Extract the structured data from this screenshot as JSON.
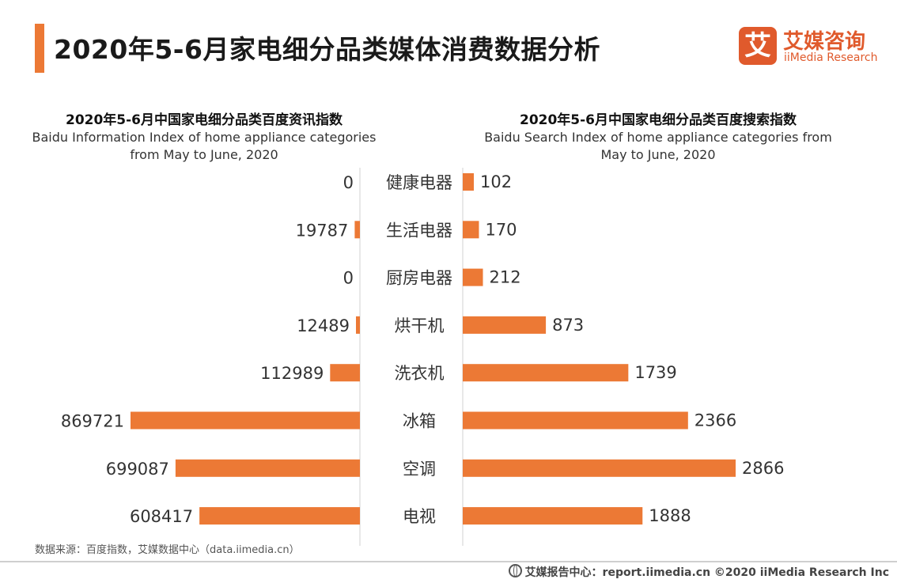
{
  "header": {
    "title": "2020年5-6月家电细分品类媒体消费数据分析",
    "logo_mark": "艾",
    "logo_cn": "艾媒咨询",
    "logo_en": "iiMedia Research"
  },
  "chart_data": [
    {
      "type": "bar",
      "orientation": "horizontal",
      "direction": "right-to-left",
      "title": "2020年5-6月中国家电细分品类百度资讯指数",
      "subtitle": "Baidu Information Index of home appliance categories from May to June, 2020",
      "categories": [
        "健康电器",
        "生活电器",
        "厨房电器",
        "烘干机",
        "洗衣机",
        "冰箱",
        "空调",
        "电视"
      ],
      "values": [
        0,
        19787,
        0,
        12489,
        112989,
        869721,
        699087,
        608417
      ],
      "data_labels": [
        "0",
        "19787",
        "0",
        "12489",
        "112989",
        "869721",
        "699087",
        "608417"
      ],
      "color": "#ec7935"
    },
    {
      "type": "bar",
      "orientation": "horizontal",
      "direction": "left-to-right",
      "title": "2020年5-6月中国家电细分品类百度搜索指数",
      "subtitle": "Baidu Search Index of home appliance categories from May to June, 2020",
      "categories": [
        "健康电器",
        "生活电器",
        "厨房电器",
        "烘干机",
        "洗衣机",
        "冰箱",
        "空调",
        "电视"
      ],
      "values": [
        102,
        170,
        212,
        873,
        1739,
        2366,
        2866,
        1888
      ],
      "data_labels": [
        "102",
        "170",
        "212",
        "873",
        "1739",
        "2366",
        "2866",
        "1888"
      ],
      "color": "#ec7935"
    }
  ],
  "source": "数据来源：百度指数，艾媒数据中心（data.iimedia.cn）",
  "footer": "艾媒报告中心：report.iimedia.cn  ©2020  iiMedia Research  Inc"
}
